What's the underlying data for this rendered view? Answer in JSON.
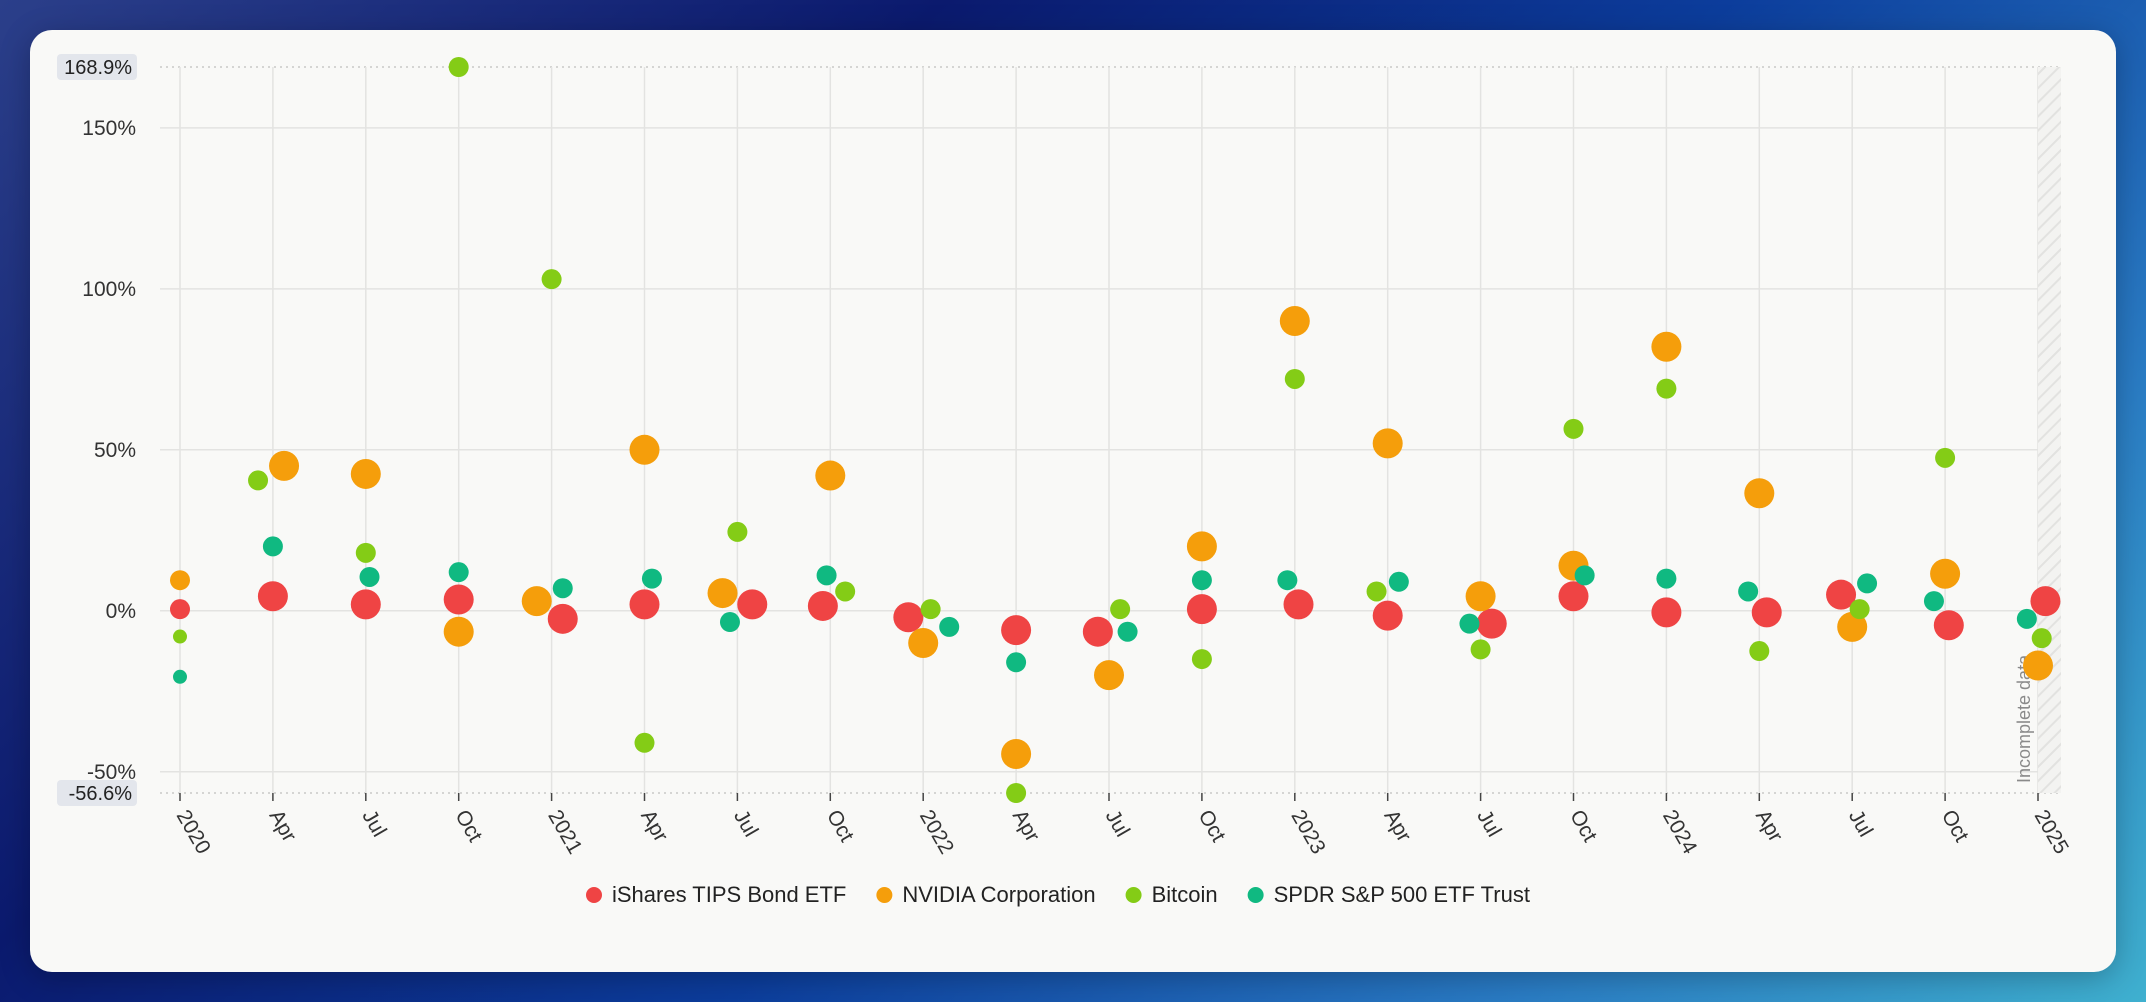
{
  "chart_data": {
    "type": "scatter",
    "title": "",
    "xlabel": "",
    "ylabel": "",
    "ylim": [
      -56.6,
      168.9
    ],
    "y_ticks": [
      {
        "value": 150,
        "label": "150%"
      },
      {
        "value": 100,
        "label": "100%"
      },
      {
        "value": 50,
        "label": "50%"
      },
      {
        "value": 0,
        "label": "0%"
      },
      {
        "value": -50,
        "label": "-50%"
      }
    ],
    "y_extremes": {
      "max_label": "168.9%",
      "min_label": "-56.6%"
    },
    "x_range": [
      2020.0,
      2025.25
    ],
    "x_ticks": [
      {
        "value": 2020.0,
        "label": "2020"
      },
      {
        "value": 2020.25,
        "label": "Apr"
      },
      {
        "value": 2020.5,
        "label": "Jul"
      },
      {
        "value": 2020.75,
        "label": "Oct"
      },
      {
        "value": 2021.0,
        "label": "2021"
      },
      {
        "value": 2021.25,
        "label": "Apr"
      },
      {
        "value": 2021.5,
        "label": "Jul"
      },
      {
        "value": 2021.75,
        "label": "Oct"
      },
      {
        "value": 2022.0,
        "label": "2022"
      },
      {
        "value": 2022.25,
        "label": "Apr"
      },
      {
        "value": 2022.5,
        "label": "Jul"
      },
      {
        "value": 2022.75,
        "label": "Oct"
      },
      {
        "value": 2023.0,
        "label": "2023"
      },
      {
        "value": 2023.25,
        "label": "Apr"
      },
      {
        "value": 2023.5,
        "label": "Jul"
      },
      {
        "value": 2023.75,
        "label": "Oct"
      },
      {
        "value": 2024.0,
        "label": "2024"
      },
      {
        "value": 2024.25,
        "label": "Apr"
      },
      {
        "value": 2024.5,
        "label": "Jul"
      },
      {
        "value": 2024.75,
        "label": "Oct"
      },
      {
        "value": 2025.0,
        "label": "2025"
      }
    ],
    "incomplete_label": "Incomplete data",
    "incomplete_from": 2025.0,
    "series": [
      {
        "name": "iShares TIPS Bond ETF",
        "color": "#ef4444",
        "points": [
          {
            "x": 2020.0,
            "y": 0.5,
            "size": 1
          },
          {
            "x": 2020.25,
            "y": 4.5,
            "size": 2
          },
          {
            "x": 2020.5,
            "y": 2,
            "size": 2
          },
          {
            "x": 2020.75,
            "y": 3.5,
            "size": 2
          },
          {
            "x": 2021.03,
            "y": -2.5,
            "size": 2
          },
          {
            "x": 2021.25,
            "y": 2,
            "size": 2
          },
          {
            "x": 2021.54,
            "y": 2,
            "size": 2
          },
          {
            "x": 2021.73,
            "y": 1.5,
            "size": 2
          },
          {
            "x": 2021.96,
            "y": -2,
            "size": 2
          },
          {
            "x": 2022.25,
            "y": -6,
            "size": 2
          },
          {
            "x": 2022.47,
            "y": -6.5,
            "size": 2
          },
          {
            "x": 2022.75,
            "y": 0.5,
            "size": 2
          },
          {
            "x": 2023.01,
            "y": 2,
            "size": 2
          },
          {
            "x": 2023.25,
            "y": -1.5,
            "size": 2
          },
          {
            "x": 2023.53,
            "y": -4,
            "size": 2
          },
          {
            "x": 2023.75,
            "y": 4.5,
            "size": 2
          },
          {
            "x": 2024.0,
            "y": -0.5,
            "size": 2
          },
          {
            "x": 2024.27,
            "y": -0.5,
            "size": 2
          },
          {
            "x": 2024.47,
            "y": 5,
            "size": 2
          },
          {
            "x": 2024.76,
            "y": -4.5,
            "size": 2
          },
          {
            "x": 2025.02,
            "y": 3,
            "size": 2
          }
        ]
      },
      {
        "name": "NVIDIA Corporation",
        "color": "#f59e0b",
        "points": [
          {
            "x": 2020.0,
            "y": 9.5,
            "size": 1
          },
          {
            "x": 2020.28,
            "y": 45,
            "size": 2
          },
          {
            "x": 2020.5,
            "y": 42.5,
            "size": 2
          },
          {
            "x": 2020.75,
            "y": -6.5,
            "size": 2
          },
          {
            "x": 2020.96,
            "y": 3,
            "size": 2
          },
          {
            "x": 2021.25,
            "y": 50,
            "size": 2
          },
          {
            "x": 2021.46,
            "y": 5.5,
            "size": 2
          },
          {
            "x": 2021.75,
            "y": 42,
            "size": 2
          },
          {
            "x": 2022.0,
            "y": -10,
            "size": 2
          },
          {
            "x": 2022.25,
            "y": -44.5,
            "size": 2
          },
          {
            "x": 2022.5,
            "y": -20,
            "size": 2
          },
          {
            "x": 2022.75,
            "y": 20,
            "size": 2
          },
          {
            "x": 2023.0,
            "y": 90,
            "size": 2
          },
          {
            "x": 2023.25,
            "y": 52,
            "size": 2
          },
          {
            "x": 2023.5,
            "y": 4.5,
            "size": 2
          },
          {
            "x": 2023.75,
            "y": 14,
            "size": 2
          },
          {
            "x": 2024.0,
            "y": 82,
            "size": 2
          },
          {
            "x": 2024.25,
            "y": 36.5,
            "size": 2
          },
          {
            "x": 2024.5,
            "y": -5,
            "size": 2
          },
          {
            "x": 2024.75,
            "y": 11.5,
            "size": 2
          },
          {
            "x": 2025.0,
            "y": -17,
            "size": 2
          }
        ]
      },
      {
        "name": "Bitcoin",
        "color": "#84cc16",
        "points": [
          {
            "x": 2020.0,
            "y": -8,
            "size": 0
          },
          {
            "x": 2020.21,
            "y": 40.5,
            "size": 1
          },
          {
            "x": 2020.5,
            "y": 18,
            "size": 1
          },
          {
            "x": 2020.75,
            "y": 168.9,
            "size": 1
          },
          {
            "x": 2021.0,
            "y": 103,
            "size": 1
          },
          {
            "x": 2021.25,
            "y": -41,
            "size": 1
          },
          {
            "x": 2021.5,
            "y": 24.5,
            "size": 1
          },
          {
            "x": 2021.79,
            "y": 6,
            "size": 1
          },
          {
            "x": 2022.02,
            "y": 0.5,
            "size": 1
          },
          {
            "x": 2022.25,
            "y": -56.6,
            "size": 1
          },
          {
            "x": 2022.53,
            "y": 0.5,
            "size": 1
          },
          {
            "x": 2022.75,
            "y": -15,
            "size": 1
          },
          {
            "x": 2023.0,
            "y": 72,
            "size": 1
          },
          {
            "x": 2023.22,
            "y": 6,
            "size": 1
          },
          {
            "x": 2023.5,
            "y": -12,
            "size": 1
          },
          {
            "x": 2023.75,
            "y": 56.5,
            "size": 1
          },
          {
            "x": 2024.0,
            "y": 69,
            "size": 1
          },
          {
            "x": 2024.25,
            "y": -12.5,
            "size": 1
          },
          {
            "x": 2024.52,
            "y": 0.5,
            "size": 1
          },
          {
            "x": 2024.75,
            "y": 47.5,
            "size": 1
          },
          {
            "x": 2025.01,
            "y": -8.5,
            "size": 1
          }
        ]
      },
      {
        "name": "SPDR S&P 500 ETF Trust",
        "color": "#10b981",
        "points": [
          {
            "x": 2020.0,
            "y": -20.5,
            "size": 0
          },
          {
            "x": 2020.25,
            "y": 20,
            "size": 1
          },
          {
            "x": 2020.51,
            "y": 10.5,
            "size": 1
          },
          {
            "x": 2020.75,
            "y": 12,
            "size": 1
          },
          {
            "x": 2021.03,
            "y": 7,
            "size": 1
          },
          {
            "x": 2021.27,
            "y": 10,
            "size": 1
          },
          {
            "x": 2021.48,
            "y": -3.5,
            "size": 1
          },
          {
            "x": 2021.74,
            "y": 11,
            "size": 1
          },
          {
            "x": 2022.07,
            "y": -5,
            "size": 1
          },
          {
            "x": 2022.25,
            "y": -16,
            "size": 1
          },
          {
            "x": 2022.55,
            "y": -6.5,
            "size": 1
          },
          {
            "x": 2022.75,
            "y": 9.5,
            "size": 1
          },
          {
            "x": 2022.98,
            "y": 9.5,
            "size": 1
          },
          {
            "x": 2023.28,
            "y": 9,
            "size": 1
          },
          {
            "x": 2023.47,
            "y": -4,
            "size": 1
          },
          {
            "x": 2023.78,
            "y": 11,
            "size": 1
          },
          {
            "x": 2024.0,
            "y": 10,
            "size": 1
          },
          {
            "x": 2024.22,
            "y": 6,
            "size": 1
          },
          {
            "x": 2024.54,
            "y": 8.5,
            "size": 1
          },
          {
            "x": 2024.72,
            "y": 3,
            "size": 1
          },
          {
            "x": 2024.97,
            "y": -2.5,
            "size": 1
          }
        ]
      }
    ]
  }
}
